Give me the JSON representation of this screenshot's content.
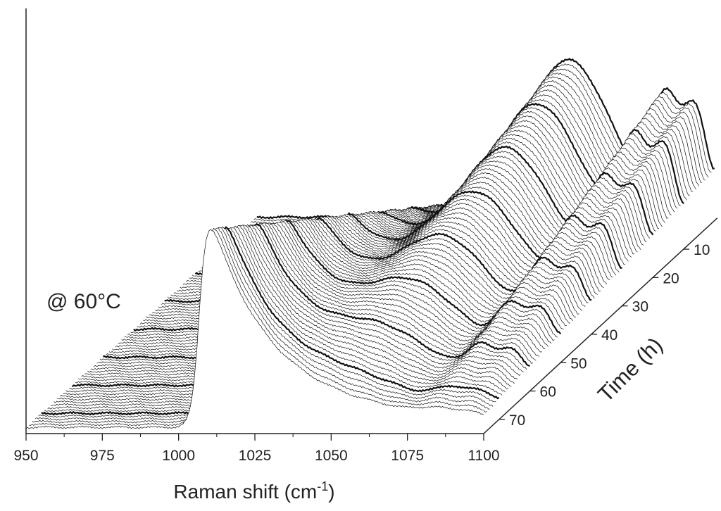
{
  "chart_data": {
    "type": "line",
    "subtype": "waterfall-3d",
    "annotation": "@ 60°C",
    "x_axis": {
      "label_main": "Raman shift (cm",
      "label_sup": "-1",
      "label_end": ")",
      "range": [
        950,
        1100
      ],
      "ticks": [
        "950",
        "975",
        "1000",
        "1025",
        "1050",
        "1075",
        "1100"
      ]
    },
    "time_axis": {
      "label": "Time (h)",
      "range": [
        0,
        75
      ],
      "ticks": [
        "10",
        "20",
        "30",
        "40",
        "50",
        "60",
        "70"
      ]
    },
    "highlighted_times_h": [
      10,
      20,
      30,
      40,
      50,
      60,
      70
    ],
    "peaks": [
      {
        "center_cm1": 1007,
        "height_t0": 0.05,
        "height_t75": 1.0
      },
      {
        "center_cm1": 1052,
        "height_t0": 0.62,
        "height_t75": 0.0
      },
      {
        "center_cm1": 1084,
        "height_t0": 0.45,
        "height_t75": 0.02
      },
      {
        "center_cm1": 1094,
        "height_t0": 0.4,
        "height_t75": 0.02
      },
      {
        "center_cm1": 1107,
        "height_t0": 1.0,
        "height_t75": 0.0
      }
    ],
    "grid": false,
    "legend": "none"
  }
}
